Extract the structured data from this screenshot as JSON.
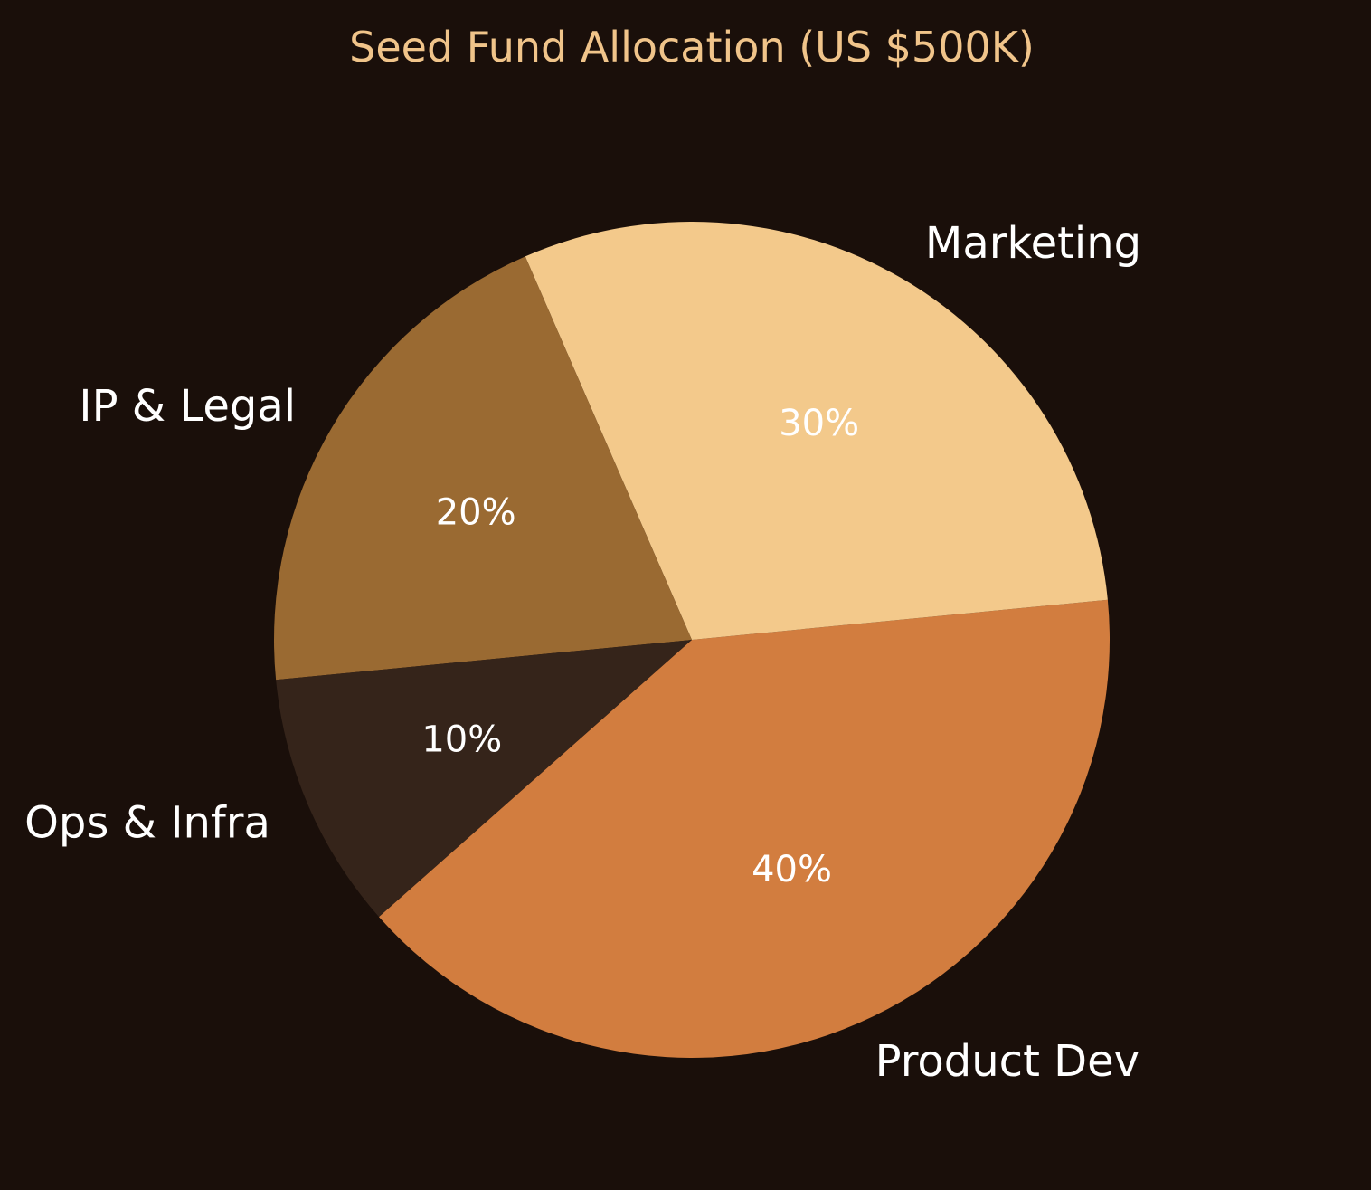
{
  "chart_data": {
    "type": "pie",
    "title": "Seed Fund Allocation (US $500K)",
    "title_color": "#f0c48a",
    "slices": [
      {
        "label": "Product Dev",
        "value": 40,
        "pct_label": "40%",
        "color": "#d27d3f"
      },
      {
        "label": "Marketing",
        "value": 30,
        "pct_label": "30%",
        "color": "#f3c98b"
      },
      {
        "label": "IP & Legal",
        "value": 20,
        "pct_label": "20%",
        "color": "#9a6a32"
      },
      {
        "label": "Ops & Infra",
        "value": 10,
        "pct_label": "10%",
        "color": "#35241a"
      }
    ],
    "background": "#1a0f0a",
    "legend": "none"
  }
}
